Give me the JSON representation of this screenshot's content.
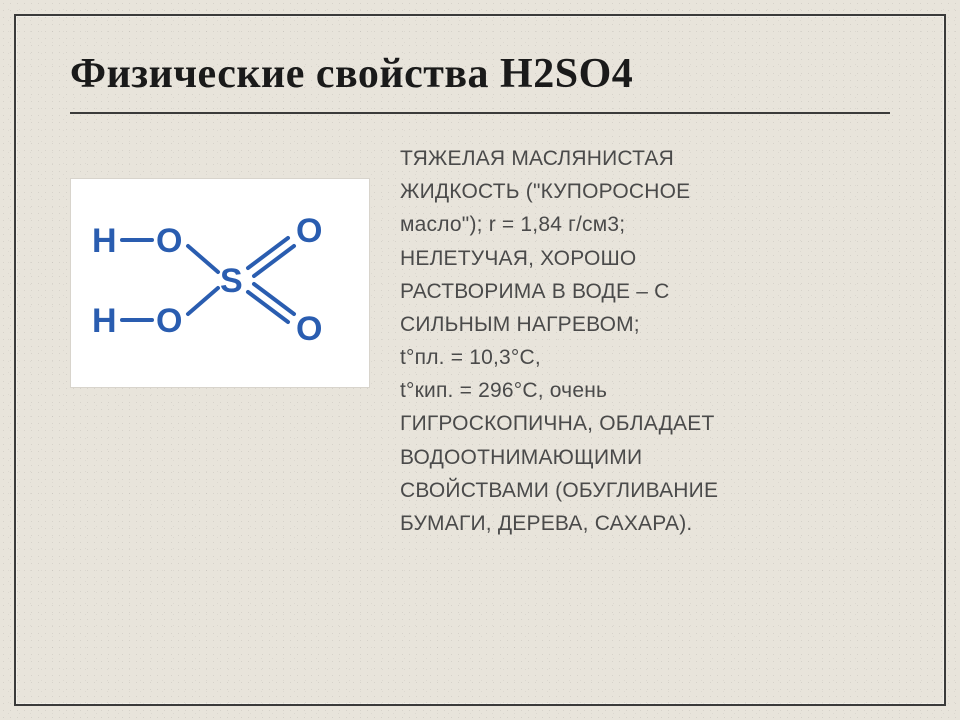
{
  "slide": {
    "title": "Физические свойства H2SO4",
    "background_color": "#e8e4db",
    "frame_color": "#3a3a3a",
    "title_fontsize": 42,
    "title_color": "#1a1a1a",
    "rule_color": "#3a3a3a"
  },
  "molecule": {
    "type": "diagram",
    "description": "sulfuric-acid-structural-formula",
    "panel_bg": "#ffffff",
    "panel_border": "#d8d4cc",
    "atom_color": "#2a5db0",
    "bond_color": "#2a5db0",
    "bond_width": 4,
    "atom_fontsize": 34,
    "atoms": {
      "H1": "H",
      "H2": "H",
      "O1": "O",
      "O2": "O",
      "O3": "O",
      "O4": "O",
      "S": "S"
    }
  },
  "body": {
    "fontsize": 21,
    "line_height": 1.58,
    "color": "#4a4a4a",
    "font_family": "Verdana",
    "lines": [
      "Тяжелая маслянистая",
      "жидкость (\"купоросное",
      "масло\"); r = 1,84 г/см3;",
      "нелетучая, хорошо",
      "растворима в воде – с",
      "сильным нагревом;",
      "t°пл. = 10,3°С,",
      "t°кип. = 296°С, очень",
      "гигроскопична, обладает",
      "водоотнимающими",
      "свойствами (обугливание",
      "бумаги, дерева, сахара)."
    ],
    "lowercase_runs": [
      2,
      6,
      7
    ]
  }
}
